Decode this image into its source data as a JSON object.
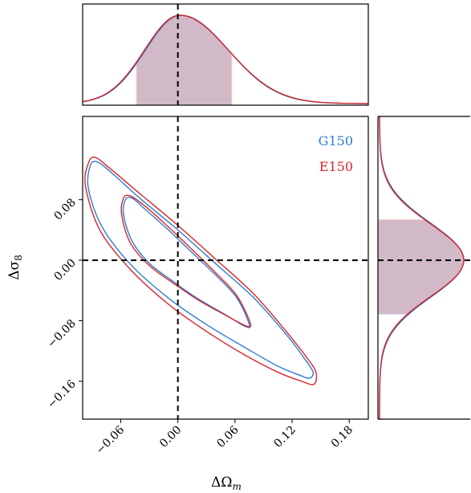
{
  "chart_data": {
    "type": "corner",
    "xlabel": "ΔΩ",
    "xlabel_sub": "m",
    "ylabel": "Δσ",
    "ylabel_sub": "8",
    "xlim": [
      -0.1,
      0.2
    ],
    "ylim": [
      -0.21,
      0.19
    ],
    "xticks": [
      -0.06,
      0.0,
      0.06,
      0.12,
      0.18
    ],
    "xtick_labels": [
      "−0.06",
      "0.00",
      "0.06",
      "0.12",
      "0.18"
    ],
    "yticks": [
      -0.16,
      -0.08,
      0.0,
      0.08
    ],
    "ytick_labels": [
      "−0.16",
      "−0.08",
      "0.00",
      "0.08"
    ],
    "truth": {
      "x": 0.0,
      "y": 0.0
    },
    "legend_position": "top-right",
    "series": [
      {
        "name": "G150",
        "color": "#2f7bd0",
        "marginal_x": {
          "center": 0.003,
          "sigma_left": 0.037,
          "sigma_right": 0.05,
          "shade": [
            -0.043,
            0.056
          ]
        },
        "marginal_y": {
          "center": 0.0,
          "sigma": 0.048,
          "shade": [
            -0.072,
            0.053
          ]
        },
        "contours": [
          {
            "level": "inner",
            "points": [
              [
                -0.055,
                0.08
              ],
              [
                -0.048,
                0.082
              ],
              [
                -0.035,
                0.068
              ],
              [
                -0.01,
                0.04
              ],
              [
                0.015,
                0.01
              ],
              [
                0.04,
                -0.02
              ],
              [
                0.062,
                -0.05
              ],
              [
                0.075,
                -0.085
              ],
              [
                0.07,
                -0.087
              ],
              [
                0.05,
                -0.072
              ],
              [
                0.02,
                -0.05
              ],
              [
                -0.005,
                -0.028
              ],
              [
                -0.03,
                -0.004
              ],
              [
                -0.048,
                0.025
              ],
              [
                -0.057,
                0.06
              ]
            ]
          },
          {
            "level": "outer",
            "points": [
              [
                -0.092,
                0.125
              ],
              [
                -0.085,
                0.13
              ],
              [
                -0.07,
                0.116
              ],
              [
                -0.04,
                0.082
              ],
              [
                0.0,
                0.04
              ],
              [
                0.04,
                -0.005
              ],
              [
                0.08,
                -0.05
              ],
              [
                0.115,
                -0.1
              ],
              [
                0.133,
                -0.13
              ],
              [
                0.142,
                -0.148
              ],
              [
                0.138,
                -0.156
              ],
              [
                0.128,
                -0.152
              ],
              [
                0.105,
                -0.14
              ],
              [
                0.07,
                -0.115
              ],
              [
                0.03,
                -0.085
              ],
              [
                -0.01,
                -0.05
              ],
              [
                -0.05,
                -0.005
              ],
              [
                -0.08,
                0.045
              ],
              [
                -0.094,
                0.095
              ]
            ]
          }
        ]
      },
      {
        "name": "E150",
        "color": "#d62728",
        "marginal_x": {
          "center": 0.002,
          "sigma_left": 0.037,
          "sigma_right": 0.051,
          "shade": [
            -0.044,
            0.057
          ]
        },
        "marginal_y": {
          "center": 0.0,
          "sigma": 0.048,
          "shade": [
            -0.071,
            0.054
          ]
        },
        "contours": [
          {
            "level": "inner",
            "points": [
              [
                -0.057,
                0.082
              ],
              [
                -0.05,
                0.085
              ],
              [
                -0.035,
                0.072
              ],
              [
                -0.01,
                0.044
              ],
              [
                0.015,
                0.014
              ],
              [
                0.04,
                -0.017
              ],
              [
                0.062,
                -0.047
              ],
              [
                0.076,
                -0.083
              ],
              [
                0.072,
                -0.087
              ],
              [
                0.052,
                -0.074
              ],
              [
                0.022,
                -0.053
              ],
              [
                -0.004,
                -0.031
              ],
              [
                -0.03,
                -0.007
              ],
              [
                -0.05,
                0.023
              ],
              [
                -0.059,
                0.06
              ]
            ]
          },
          {
            "level": "outer",
            "points": [
              [
                -0.094,
                0.128
              ],
              [
                -0.087,
                0.136
              ],
              [
                -0.072,
                0.122
              ],
              [
                -0.04,
                0.088
              ],
              [
                0.0,
                0.046
              ],
              [
                0.04,
                0.001
              ],
              [
                0.08,
                -0.045
              ],
              [
                0.115,
                -0.096
              ],
              [
                0.135,
                -0.128
              ],
              [
                0.145,
                -0.148
              ],
              [
                0.143,
                -0.164
              ],
              [
                0.13,
                -0.16
              ],
              [
                0.105,
                -0.148
              ],
              [
                0.07,
                -0.125
              ],
              [
                0.03,
                -0.094
              ],
              [
                -0.01,
                -0.058
              ],
              [
                -0.05,
                -0.012
              ],
              [
                -0.082,
                0.04
              ],
              [
                -0.097,
                0.098
              ]
            ]
          }
        ]
      }
    ]
  }
}
